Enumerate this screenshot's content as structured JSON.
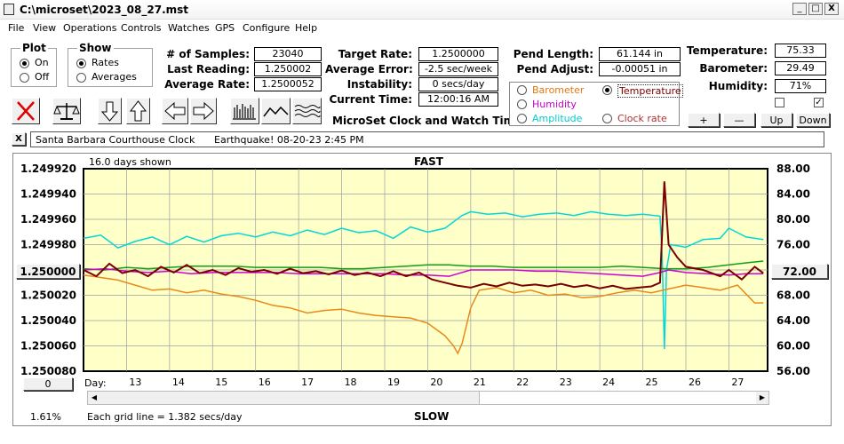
{
  "window": {
    "title": "C:\\microset\\2023_08_27.mst",
    "min": "_",
    "max": "□",
    "close": "X"
  },
  "menu": [
    "File",
    "View",
    "Operations",
    "Controls",
    "Watches",
    "GPS",
    "Configure",
    "Help"
  ],
  "plot_group": {
    "title": "Plot",
    "on": "On",
    "off": "Off",
    "selected": "On"
  },
  "show_group": {
    "title": "Show",
    "rates": "Rates",
    "averages": "Averages",
    "selected": "Rates"
  },
  "stats": {
    "samples_label": "# of Samples:",
    "samples": "23040",
    "last_label": "Last Reading:",
    "last": "1.250002",
    "avg_label": "Average Rate:",
    "avg": "1.2500052"
  },
  "timing": {
    "target_label": "Target Rate:",
    "target": "1.2500000",
    "error_label": "Average Error:",
    "error": "-2.5 sec/week",
    "instab_label": "Instability:",
    "instab": "0 secs/day",
    "time_label": "Current Time:",
    "time": "12:00:16 AM",
    "app_name": "MicroSet Clock and Watch Timer"
  },
  "pend": {
    "length_label": "Pend Length:",
    "length": "61.144 in",
    "adjust_label": "Pend Adjust:",
    "adjust": "-0.00051 in"
  },
  "sensors": {
    "barometer": "Barometer",
    "temperature": "Temperature",
    "humidity": "Humidity",
    "amplitude": "Amplitude",
    "clock_rate": "Clock rate",
    "selected": "Temperature",
    "colors": {
      "barometer": "#e07a10",
      "temperature": "#7a0000",
      "humidity": "#cc00cc",
      "amplitude": "#00cccc",
      "clock_rate": "#009900"
    }
  },
  "env": {
    "temp_label": "Temperature:",
    "temp": "75.33",
    "baro_label": "Barometer:",
    "baro": "29.49",
    "hum_label": "Humidity:",
    "hum": "71%",
    "check1": false,
    "check2": true,
    "plus": "+",
    "minus": "—",
    "up": "Up",
    "down": "Down"
  },
  "note": {
    "close": "X",
    "text": "Santa Barbara Courthouse Clock",
    "event": "Earthquake! 08-20-23 2:45 PM"
  },
  "chart": {
    "days_shown": "16.0 days shown",
    "top_label": "FAST",
    "bottom_label": "SLOW",
    "left_value_button": "1.250000",
    "right_value_button": "72.00",
    "zero_button": "0",
    "day_label": "Day:",
    "pct": "1.61%",
    "grid_note": "Each grid line = 1.382 secs/day",
    "left_ticks": [
      "1.249920",
      "1.249940",
      "1.249960",
      "1.249980",
      "1.250000",
      "1.250020",
      "1.250040",
      "1.250060",
      "1.250080"
    ],
    "right_ticks": [
      "88.00",
      "84.00",
      "80.00",
      "76.00",
      "72.00",
      "68.00",
      "64.00",
      "60.00",
      "56.00"
    ],
    "day_ticks": [
      "13",
      "14",
      "15",
      "16",
      "17",
      "18",
      "19",
      "20",
      "21",
      "22",
      "23",
      "24",
      "25",
      "26",
      "27"
    ],
    "bg": "#ffffc8"
  },
  "chart_data": {
    "type": "line",
    "x_range": [
      12.0,
      27.9
    ],
    "left_axis_range": [
      1.24992,
      1.25008
    ],
    "right_axis_range": [
      56,
      88
    ],
    "series": [
      {
        "name": "Amplitude",
        "color": "#00d8d8",
        "axis": "right",
        "points": [
          [
            12.0,
            77.0
          ],
          [
            12.4,
            77.5
          ],
          [
            12.8,
            75.5
          ],
          [
            13.2,
            76.5
          ],
          [
            13.6,
            77.2
          ],
          [
            14.0,
            76.0
          ],
          [
            14.4,
            77.3
          ],
          [
            14.8,
            76.4
          ],
          [
            15.2,
            77.4
          ],
          [
            15.6,
            77.8
          ],
          [
            16.0,
            77.2
          ],
          [
            16.4,
            78.0
          ],
          [
            16.8,
            77.4
          ],
          [
            17.2,
            78.3
          ],
          [
            17.6,
            77.6
          ],
          [
            18.0,
            78.6
          ],
          [
            18.4,
            77.9
          ],
          [
            18.8,
            78.2
          ],
          [
            19.2,
            77.0
          ],
          [
            19.6,
            78.8
          ],
          [
            20.0,
            78.0
          ],
          [
            20.4,
            78.6
          ],
          [
            20.8,
            80.6
          ],
          [
            21.0,
            81.2
          ],
          [
            21.4,
            80.8
          ],
          [
            21.8,
            81.0
          ],
          [
            22.2,
            80.4
          ],
          [
            22.6,
            80.8
          ],
          [
            23.0,
            81.0
          ],
          [
            23.4,
            80.6
          ],
          [
            23.8,
            81.2
          ],
          [
            24.2,
            80.8
          ],
          [
            24.6,
            80.6
          ],
          [
            25.0,
            80.8
          ],
          [
            25.4,
            80.5
          ],
          [
            25.45,
            74.0
          ],
          [
            25.5,
            59.5
          ],
          [
            25.55,
            72.0
          ],
          [
            25.65,
            76.0
          ],
          [
            26.0,
            75.6
          ],
          [
            26.4,
            76.8
          ],
          [
            26.8,
            77.0
          ],
          [
            27.0,
            78.6
          ],
          [
            27.4,
            77.2
          ],
          [
            27.8,
            76.8
          ]
        ]
      },
      {
        "name": "Clock rate",
        "color": "#10a010",
        "axis": "left",
        "points": [
          [
            12.0,
            1.249999
          ],
          [
            12.5,
            1.25
          ],
          [
            13.0,
            1.249998
          ],
          [
            13.5,
            1.249999
          ],
          [
            14.0,
            1.249998
          ],
          [
            14.5,
            1.249997
          ],
          [
            15.0,
            1.249997
          ],
          [
            15.5,
            1.249997
          ],
          [
            16.0,
            1.249998
          ],
          [
            16.5,
            1.249998
          ],
          [
            17.0,
            1.249998
          ],
          [
            17.5,
            1.249998
          ],
          [
            18.0,
            1.249999
          ],
          [
            18.5,
            1.249999
          ],
          [
            19.0,
            1.249998
          ],
          [
            19.5,
            1.249997
          ],
          [
            20.0,
            1.249996
          ],
          [
            20.5,
            1.249996
          ],
          [
            21.0,
            1.249997
          ],
          [
            21.5,
            1.249997
          ],
          [
            22.0,
            1.249998
          ],
          [
            22.5,
            1.249998
          ],
          [
            23.0,
            1.249998
          ],
          [
            23.5,
            1.249998
          ],
          [
            24.0,
            1.249998
          ],
          [
            24.5,
            1.249997
          ],
          [
            25.0,
            1.249998
          ],
          [
            25.5,
            1.249999
          ],
          [
            26.0,
            1.249999
          ],
          [
            26.5,
            1.249998
          ],
          [
            27.0,
            1.249996
          ],
          [
            27.5,
            1.249994
          ],
          [
            27.8,
            1.249993
          ]
        ]
      },
      {
        "name": "Humidity",
        "color": "#d000d0",
        "axis": "left",
        "points": [
          [
            12.0,
            1.25
          ],
          [
            12.5,
            1.249999
          ],
          [
            13.0,
            1.250001
          ],
          [
            13.5,
            1.250002
          ],
          [
            14.0,
            1.250001
          ],
          [
            14.5,
            1.250003
          ],
          [
            15.0,
            1.250002
          ],
          [
            15.5,
            1.250002
          ],
          [
            16.0,
            1.250002
          ],
          [
            16.5,
            1.250002
          ],
          [
            17.0,
            1.250003
          ],
          [
            17.5,
            1.250003
          ],
          [
            18.0,
            1.250003
          ],
          [
            18.5,
            1.250003
          ],
          [
            19.0,
            1.250003
          ],
          [
            19.5,
            1.250004
          ],
          [
            20.0,
            1.250004
          ],
          [
            20.5,
            1.250005
          ],
          [
            21.0,
            1.25
          ],
          [
            21.5,
            1.25
          ],
          [
            22.0,
            1.25
          ],
          [
            22.5,
            1.250001
          ],
          [
            23.0,
            1.250001
          ],
          [
            23.5,
            1.250002
          ],
          [
            24.0,
            1.250003
          ],
          [
            24.5,
            1.250004
          ],
          [
            25.0,
            1.250005
          ],
          [
            25.4,
            1.250002
          ],
          [
            25.6,
            1.25
          ],
          [
            26.0,
            1.250002
          ],
          [
            26.5,
            1.250003
          ],
          [
            27.0,
            1.250004
          ],
          [
            27.4,
            1.250003
          ],
          [
            27.8,
            1.250003
          ]
        ]
      },
      {
        "name": "Barometer",
        "color": "#e8891a",
        "axis": "left",
        "points": [
          [
            12.0,
            1.250004
          ],
          [
            12.4,
            1.250006
          ],
          [
            12.8,
            1.250008
          ],
          [
            13.2,
            1.250012
          ],
          [
            13.6,
            1.250016
          ],
          [
            14.0,
            1.250015
          ],
          [
            14.4,
            1.250018
          ],
          [
            14.8,
            1.250016
          ],
          [
            15.2,
            1.250019
          ],
          [
            15.6,
            1.250021
          ],
          [
            16.0,
            1.250024
          ],
          [
            16.4,
            1.250028
          ],
          [
            16.8,
            1.25003
          ],
          [
            17.2,
            1.250034
          ],
          [
            17.6,
            1.250032
          ],
          [
            18.0,
            1.250031
          ],
          [
            18.4,
            1.250034
          ],
          [
            18.8,
            1.250036
          ],
          [
            19.2,
            1.250037
          ],
          [
            19.6,
            1.250038
          ],
          [
            20.0,
            1.250042
          ],
          [
            20.4,
            1.250052
          ],
          [
            20.6,
            1.25006
          ],
          [
            20.7,
            1.250066
          ],
          [
            20.8,
            1.250058
          ],
          [
            21.0,
            1.25003
          ],
          [
            21.2,
            1.250016
          ],
          [
            21.6,
            1.250014
          ],
          [
            22.0,
            1.250018
          ],
          [
            22.4,
            1.250016
          ],
          [
            22.8,
            1.25002
          ],
          [
            23.2,
            1.250019
          ],
          [
            23.6,
            1.250022
          ],
          [
            24.0,
            1.250021
          ],
          [
            24.4,
            1.250018
          ],
          [
            24.8,
            1.250016
          ],
          [
            25.2,
            1.250018
          ],
          [
            25.6,
            1.250015
          ],
          [
            26.0,
            1.250012
          ],
          [
            26.4,
            1.250014
          ],
          [
            26.8,
            1.250016
          ],
          [
            27.2,
            1.250012
          ],
          [
            27.6,
            1.250026
          ],
          [
            27.8,
            1.250026
          ]
        ]
      },
      {
        "name": "Temperature",
        "color": "#7a0000",
        "axis": "right",
        "points": [
          [
            12.0,
            72.0
          ],
          [
            12.3,
            71.0
          ],
          [
            12.6,
            73.0
          ],
          [
            12.9,
            71.5
          ],
          [
            13.2,
            72.0
          ],
          [
            13.5,
            71.0
          ],
          [
            13.8,
            72.5
          ],
          [
            14.1,
            71.6
          ],
          [
            14.4,
            72.8
          ],
          [
            14.7,
            71.5
          ],
          [
            15.0,
            72.0
          ],
          [
            15.3,
            71.2
          ],
          [
            15.6,
            72.3
          ],
          [
            15.9,
            71.7
          ],
          [
            16.2,
            72.0
          ],
          [
            16.5,
            71.4
          ],
          [
            16.8,
            72.2
          ],
          [
            17.1,
            71.5
          ],
          [
            17.4,
            71.8
          ],
          [
            17.7,
            71.3
          ],
          [
            18.0,
            71.9
          ],
          [
            18.3,
            71.2
          ],
          [
            18.6,
            71.6
          ],
          [
            18.9,
            71.0
          ],
          [
            19.2,
            71.8
          ],
          [
            19.5,
            71.0
          ],
          [
            19.8,
            71.6
          ],
          [
            20.1,
            70.5
          ],
          [
            20.4,
            70.0
          ],
          [
            20.7,
            69.5
          ],
          [
            21.0,
            69.2
          ],
          [
            21.3,
            69.8
          ],
          [
            21.6,
            69.4
          ],
          [
            21.9,
            70.0
          ],
          [
            22.2,
            69.5
          ],
          [
            22.5,
            69.7
          ],
          [
            22.8,
            69.4
          ],
          [
            23.1,
            69.8
          ],
          [
            23.4,
            69.3
          ],
          [
            23.7,
            69.6
          ],
          [
            24.0,
            69.1
          ],
          [
            24.3,
            69.5
          ],
          [
            24.6,
            69.0
          ],
          [
            24.9,
            69.2
          ],
          [
            25.2,
            69.4
          ],
          [
            25.4,
            70.0
          ],
          [
            25.5,
            86.0
          ],
          [
            25.6,
            76.0
          ],
          [
            25.8,
            74.0
          ],
          [
            26.0,
            72.5
          ],
          [
            26.4,
            72.0
          ],
          [
            26.8,
            71.0
          ],
          [
            27.0,
            72.0
          ],
          [
            27.3,
            70.5
          ],
          [
            27.6,
            72.5
          ],
          [
            27.8,
            71.5
          ]
        ]
      }
    ]
  }
}
